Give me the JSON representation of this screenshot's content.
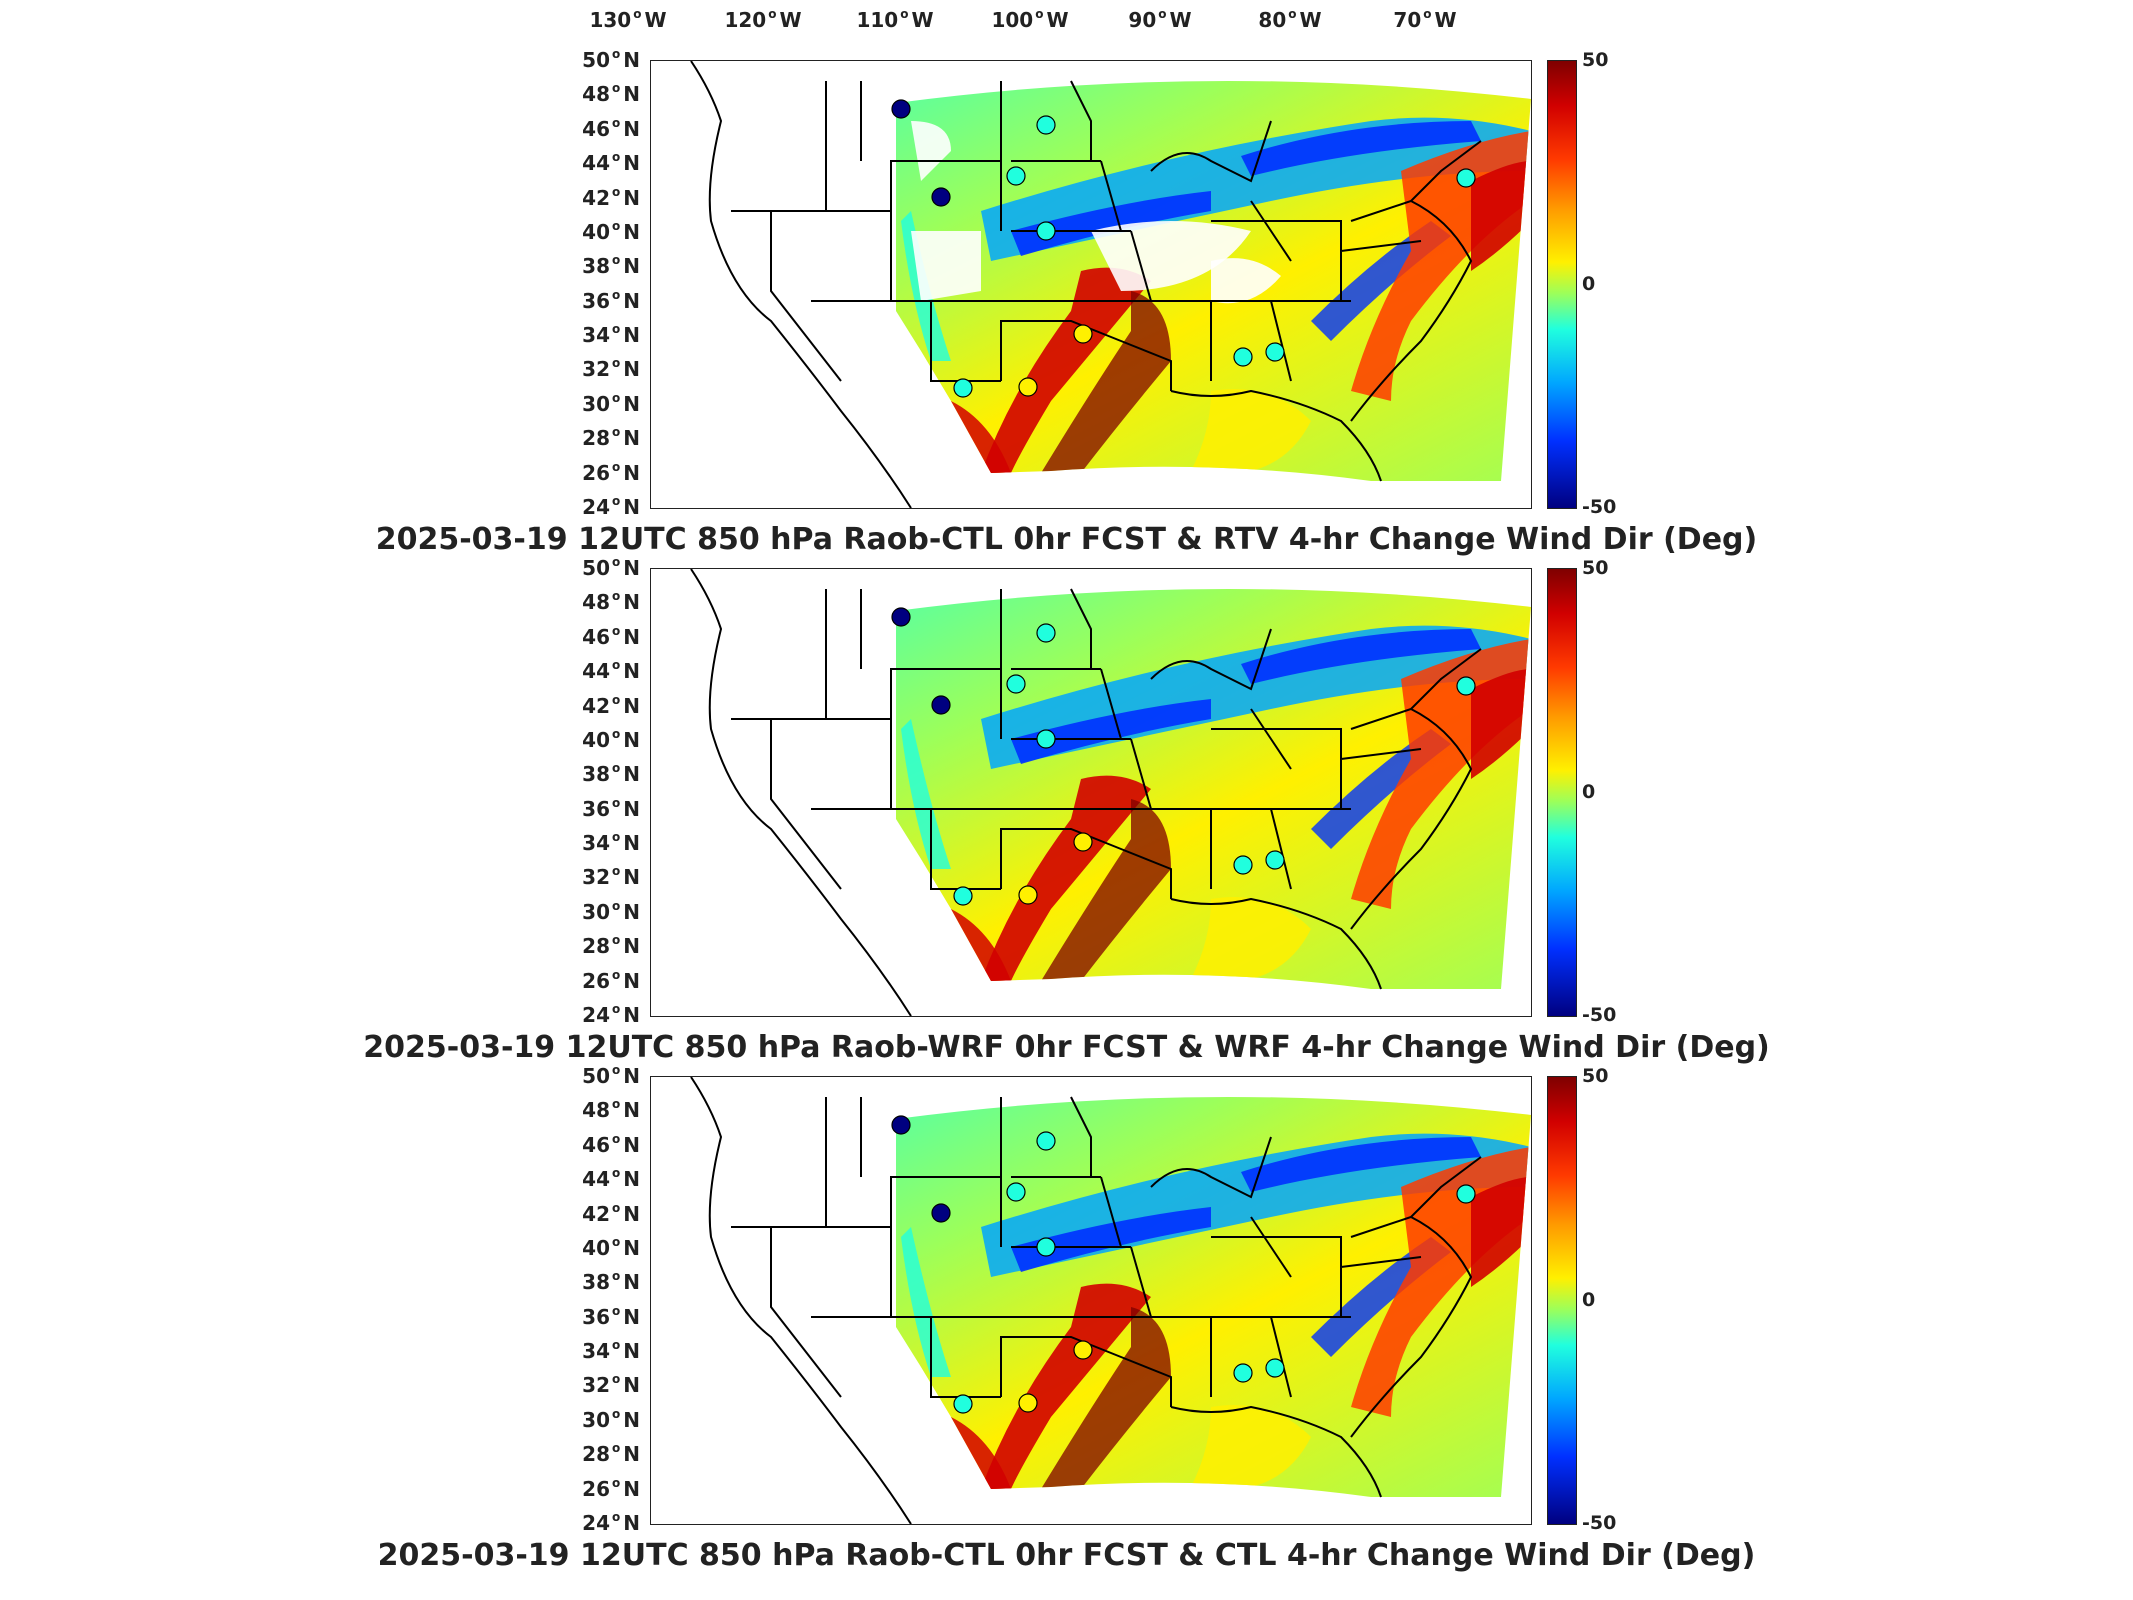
{
  "longitude_labels": [
    {
      "deg": "130",
      "dir": "W"
    },
    {
      "deg": "120",
      "dir": "W"
    },
    {
      "deg": "110",
      "dir": "W"
    },
    {
      "deg": "100",
      "dir": "W"
    },
    {
      "deg": "90",
      "dir": "W"
    },
    {
      "deg": "80",
      "dir": "W"
    },
    {
      "deg": "70",
      "dir": "W"
    }
  ],
  "latitude_labels": [
    {
      "deg": "50",
      "dir": "N"
    },
    {
      "deg": "48",
      "dir": "N"
    },
    {
      "deg": "46",
      "dir": "N"
    },
    {
      "deg": "44",
      "dir": "N"
    },
    {
      "deg": "42",
      "dir": "N"
    },
    {
      "deg": "40",
      "dir": "N"
    },
    {
      "deg": "38",
      "dir": "N"
    },
    {
      "deg": "36",
      "dir": "N"
    },
    {
      "deg": "34",
      "dir": "N"
    },
    {
      "deg": "32",
      "dir": "N"
    },
    {
      "deg": "30",
      "dir": "N"
    },
    {
      "deg": "28",
      "dir": "N"
    },
    {
      "deg": "26",
      "dir": "N"
    },
    {
      "deg": "24",
      "dir": "N"
    }
  ],
  "colorbar": {
    "max_label": "50",
    "mid_label": "0",
    "min_label": "-50",
    "colors": [
      "#7f0000",
      "#d10000",
      "#ff3a00",
      "#ff9a00",
      "#fff000",
      "#9cff5a",
      "#20ffde",
      "#00a6ff",
      "#0030ff",
      "#000080"
    ]
  },
  "panels": [
    {
      "title": "2025-03-19 12UTC 850 hPa Raob-CTL 0hr FCST & RTV 4-hr Change Wind Dir (Deg)"
    },
    {
      "title": "2025-03-19 12UTC 850 hPa Raob-WRF 0hr FCST & WRF 4-hr Change Wind Dir (Deg)"
    },
    {
      "title": "2025-03-19 12UTC 850 hPa Raob-CTL 0hr FCST & CTL 4-hr Change Wind Dir (Deg)"
    }
  ],
  "raob_stations": [
    {
      "color": "#000080"
    },
    {
      "color": "#000080"
    },
    {
      "color": "#20ffde"
    },
    {
      "color": "#20ffde"
    },
    {
      "color": "#20ffde"
    },
    {
      "color": "#fff000"
    },
    {
      "color": "#fff000"
    },
    {
      "color": "#20ffde"
    },
    {
      "color": "#20ffde"
    },
    {
      "color": "#20ffde"
    },
    {
      "color": "#20ffde"
    }
  ]
}
